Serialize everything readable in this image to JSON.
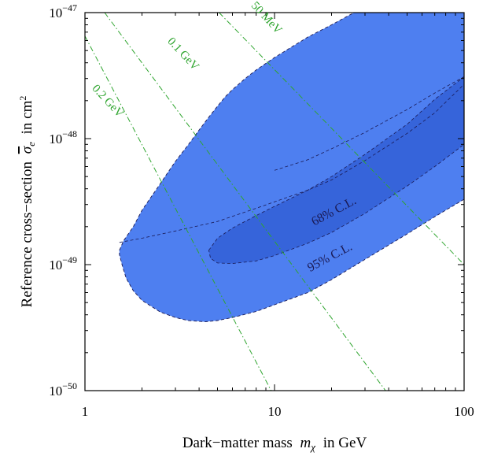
{
  "chart_data": {
    "type": "area",
    "xlabel_text": "Dark−matter mass",
    "xlabel_symbol": "m",
    "xlabel_sub": "χ",
    "xlabel_unit": "in GeV",
    "ylabel_text": "Reference cross−section",
    "ylabel_symbol": "σ",
    "ylabel_sub": "e",
    "ylabel_unit": "in cm",
    "ylabel_unit_sup": "2",
    "x_scale": "log",
    "y_scale": "log",
    "xlim": [
      1,
      100
    ],
    "ylim": [
      1e-50,
      1e-47
    ],
    "x_ticks": [
      {
        "value": 1,
        "label": "1"
      },
      {
        "value": 10,
        "label": "10"
      },
      {
        "value": 100,
        "label": "100"
      }
    ],
    "y_ticks": [
      {
        "value": 1e-50,
        "base": "10",
        "exp": "−50"
      },
      {
        "value": 1e-49,
        "base": "10",
        "exp": "−49"
      },
      {
        "value": 1e-48,
        "base": "10",
        "exp": "−48"
      },
      {
        "value": 1e-47,
        "base": "10",
        "exp": "−47"
      }
    ],
    "grid": false,
    "colors": {
      "region_95": "#4e7ff0",
      "region_68": "#3664da",
      "contour_line": "#1a1a55",
      "mass_lines": "#2fa52f",
      "frame": "#000000"
    },
    "regions": [
      {
        "name": "95% C.L.",
        "label": "95% C.L.",
        "label_position": {
          "x": 20,
          "y": 1.08e-49
        },
        "boundary": [
          [
            1.52,
            1.3e-49
          ],
          [
            1.6,
            1.55e-49
          ],
          [
            1.8,
            2e-49
          ],
          [
            2.0,
            2.7e-49
          ],
          [
            2.5,
            4.4e-49
          ],
          [
            3.0,
            6.6e-49
          ],
          [
            3.5,
            8.9e-49
          ],
          [
            4.0,
            1.17e-48
          ],
          [
            4.5,
            1.48e-48
          ],
          [
            5.0,
            1.81e-48
          ],
          [
            5.5,
            2.15e-48
          ],
          [
            6.0,
            2.45e-48
          ],
          [
            7.0,
            3e-48
          ],
          [
            8.0,
            3.5e-48
          ],
          [
            10.0,
            4.4e-48
          ],
          [
            15.0,
            6.4e-48
          ],
          [
            20.0,
            8e-48
          ],
          [
            25.0,
            9.6e-48
          ],
          [
            30.0,
            1.1e-47
          ],
          [
            30.0,
            1e-47
          ],
          [
            100,
            1e-47
          ],
          [
            100,
            3.3e-49
          ],
          [
            70,
            2.4e-49
          ],
          [
            50,
            1.75e-49
          ],
          [
            30,
            1.1e-49
          ],
          [
            20,
            7.6e-50
          ],
          [
            15,
            6e-50
          ],
          [
            10,
            4.8e-50
          ],
          [
            8,
            4.25e-50
          ],
          [
            6,
            3.8e-50
          ],
          [
            5,
            3.6e-50
          ],
          [
            4.3,
            3.52e-50
          ],
          [
            3.5,
            3.6e-50
          ],
          [
            3.0,
            3.8e-50
          ],
          [
            2.5,
            4.2e-50
          ],
          [
            2.0,
            5.2e-50
          ],
          [
            1.8,
            6.2e-50
          ],
          [
            1.65,
            7.8e-50
          ],
          [
            1.58,
            9.6e-50
          ],
          [
            1.52,
            1.2e-49
          ]
        ]
      },
      {
        "name": "68% C.L.",
        "label": "68% C.L.",
        "label_position": {
          "x": 21,
          "y": 2.5e-49
        },
        "boundary": [
          [
            4.5,
            1.3e-49
          ],
          [
            5.0,
            1.62e-49
          ],
          [
            6.0,
            1.95e-49
          ],
          [
            8.0,
            2.45e-49
          ],
          [
            10.0,
            2.9e-49
          ],
          [
            15.0,
            3.9e-49
          ],
          [
            20.0,
            5e-49
          ],
          [
            30.0,
            7.5e-49
          ],
          [
            50.0,
            1.3e-48
          ],
          [
            70.0,
            2.05e-48
          ],
          [
            100,
            3.1e-48
          ],
          [
            100,
            9e-49
          ],
          [
            70,
            6e-49
          ],
          [
            50,
            4.2e-49
          ],
          [
            30,
            2.55e-49
          ],
          [
            20,
            1.8e-49
          ],
          [
            15,
            1.48e-49
          ],
          [
            10,
            1.18e-49
          ],
          [
            8,
            1.07e-49
          ],
          [
            6,
            1.02e-49
          ],
          [
            5,
            1.03e-49
          ],
          [
            4.6,
            1.12e-49
          ],
          [
            4.5,
            1.3e-49
          ]
        ]
      }
    ],
    "dashed_curves": [
      {
        "name": "95% contour",
        "points": [
          [
            1.52,
            1.5e-49
          ],
          [
            2.0,
            1.62e-49
          ],
          [
            3.0,
            1.85e-49
          ],
          [
            5.0,
            2.2e-49
          ],
          [
            8.0,
            2.8e-49
          ],
          [
            10.0,
            3.15e-49
          ],
          [
            15.0,
            3.9e-49
          ],
          [
            20.0,
            4.7e-49
          ],
          [
            30.0,
            6.7e-49
          ],
          [
            50.0,
            1.1e-48
          ],
          [
            70.0,
            1.6e-48
          ],
          [
            100,
            2.7e-48
          ]
        ]
      },
      {
        "name": "95% contour upper",
        "points": [
          [
            10.0,
            5.6e-49
          ],
          [
            15.0,
            6.8e-49
          ],
          [
            20.0,
            8.3e-49
          ],
          [
            30.0,
            1.12e-48
          ],
          [
            50.0,
            1.7e-48
          ],
          [
            70.0,
            2.3e-48
          ],
          [
            100,
            3.1e-48
          ]
        ]
      }
    ],
    "mass_lines": [
      {
        "label": "0.2 GeV",
        "points": [
          [
            1.0,
            6.5e-48
          ],
          [
            9.6,
            1e-50
          ]
        ],
        "label_position": {
          "x": 1.28,
          "y": 1.9e-48
        }
      },
      {
        "label": "0.1 GeV",
        "points": [
          [
            1.27,
            1e-47
          ],
          [
            38.5,
            1e-50
          ]
        ],
        "label_position": {
          "x": 3.2,
          "y": 4.5e-48
        }
      },
      {
        "label": "50 MeV",
        "points": [
          [
            5.1,
            1e-47
          ],
          [
            100,
            1e-49
          ]
        ],
        "label_position": {
          "x": 8.8,
          "y": 8.7e-48
        }
      }
    ]
  }
}
